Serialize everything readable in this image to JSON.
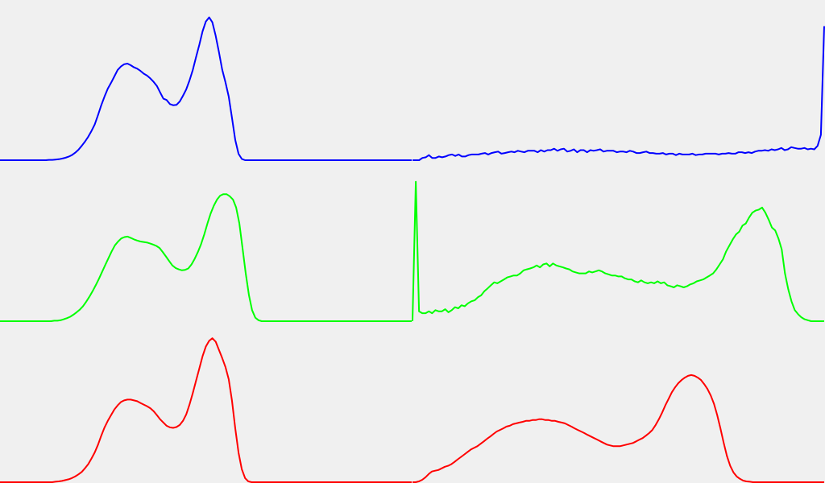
{
  "background": "#f0f0f0",
  "chart_data": [
    {
      "type": "line",
      "xlim": [
        0,
        255
      ],
      "series": [
        {
          "color": "#0000ff",
          "values": [
            0,
            0,
            0,
            0,
            0,
            0,
            0,
            0,
            0,
            0,
            0,
            0,
            0,
            0,
            0,
            0.2,
            0.2,
            0.4,
            0.6,
            1,
            1.5,
            2.2,
            3.2,
            4.7,
            6.5,
            9,
            11.6,
            14.7,
            18.4,
            22.4,
            28.4,
            34.5,
            40,
            44.9,
            48.6,
            52.5,
            56.6,
            58.8,
            60.2,
            60.6,
            59.6,
            58.3,
            57.4,
            56,
            54.3,
            53.1,
            51.3,
            49.2,
            46.6,
            42.6,
            38.6,
            37.8,
            35.2,
            34.5,
            34.7,
            36.8,
            40.4,
            44.5,
            50,
            56.6,
            64.6,
            72.4,
            80.8,
            87,
            89.6,
            86.5,
            78.1,
            68,
            56.8,
            49,
            39.9,
            26.7,
            12.7,
            4,
            0.8,
            0,
            0,
            0,
            0,
            0,
            0,
            0,
            0,
            0,
            0,
            0,
            0,
            0,
            0,
            0,
            0,
            0,
            0,
            0,
            0,
            0,
            0,
            0,
            0,
            0,
            0,
            0,
            0,
            0,
            0,
            0,
            0,
            0,
            0,
            0,
            0,
            0,
            0,
            0,
            0,
            0,
            0,
            0,
            0,
            0,
            0,
            0,
            0,
            0,
            0,
            0,
            0
          ]
        },
        {
          "color": "#0000ff",
          "values": [
            0,
            0,
            0,
            1.4,
            1.8,
            3.2,
            1.4,
            1.4,
            2.3,
            1.8,
            2.3,
            3.2,
            3.6,
            2.7,
            3.6,
            2.3,
            2.3,
            3.2,
            3.6,
            3.6,
            3.6,
            4.1,
            4.5,
            3.6,
            4.5,
            5,
            5.4,
            4.1,
            4.5,
            5,
            5.4,
            5,
            5.9,
            5.4,
            5,
            5.9,
            5.9,
            5.9,
            5,
            6.3,
            5.4,
            6.3,
            6.3,
            7.2,
            5.9,
            6.8,
            7.2,
            5.4,
            5.9,
            6.8,
            5,
            6.3,
            6.3,
            5,
            6.3,
            5.9,
            6.3,
            6.8,
            5.4,
            5.9,
            5.9,
            5.9,
            5,
            5.4,
            5.4,
            5,
            5.9,
            5.4,
            4.5,
            4.5,
            5,
            5.4,
            4.5,
            4.5,
            4.1,
            4.1,
            4.5,
            3.6,
            4.1,
            4.1,
            3.2,
            4.1,
            3.6,
            3.6,
            3.6,
            4.1,
            3.2,
            3.6,
            3.6,
            4.1,
            4.1,
            4.1,
            4.1,
            3.6,
            4.1,
            4.1,
            4.5,
            4.1,
            4.1,
            5,
            5,
            4.5,
            5,
            4.5,
            5.4,
            5.9,
            5.9,
            6.3,
            5.9,
            6.8,
            6.3,
            6.8,
            7.7,
            6.3,
            6.8,
            8.2,
            7.7,
            7.2,
            7.2,
            7.7,
            6.8,
            7.2,
            6.8,
            9,
            15.9,
            84.1
          ]
        },
        {
          "color": "#00ff00",
          "values": [
            0,
            0,
            0,
            0,
            0,
            0,
            0,
            0,
            0,
            0,
            0,
            0,
            0,
            0,
            0,
            0,
            0,
            0.3,
            0.3,
            0.6,
            1.2,
            1.9,
            2.8,
            4.1,
            5.6,
            7.2,
            9.4,
            12.2,
            15.3,
            18.8,
            22.5,
            26.6,
            31,
            35.3,
            39.6,
            43.8,
            47.6,
            50,
            51.9,
            52.8,
            53.1,
            52.2,
            51.3,
            50.6,
            50,
            49.7,
            49.4,
            48.8,
            48.1,
            47.2,
            45.9,
            43.4,
            40.6,
            37.8,
            35,
            33.4,
            32.5,
            31.9,
            32.2,
            33.1,
            35.6,
            39.1,
            43.4,
            48.4,
            54.4,
            61.3,
            67.5,
            72.5,
            76.3,
            78.8,
            79.7,
            79.7,
            78.4,
            76.3,
            71.3,
            61.3,
            45.6,
            30,
            16.3,
            6.9,
            2.2,
            0.6,
            0,
            0,
            0,
            0,
            0,
            0,
            0,
            0,
            0,
            0,
            0,
            0,
            0,
            0,
            0,
            0,
            0,
            0,
            0,
            0,
            0,
            0,
            0,
            0,
            0,
            0,
            0,
            0,
            0,
            0,
            0,
            0,
            0,
            0,
            0,
            0,
            0,
            0,
            0,
            0,
            0,
            0,
            0,
            0,
            0,
            0,
            0,
            0
          ]
        },
        {
          "color": "#00ff00",
          "values": [
            0,
            87.5,
            6.2,
            5,
            5,
            6.2,
            5,
            6.9,
            6.2,
            6.2,
            7.5,
            5.6,
            6.9,
            8.8,
            8.1,
            10,
            9.4,
            11.2,
            12.5,
            13.1,
            15,
            16.2,
            18.8,
            20.6,
            22.5,
            24.4,
            23.8,
            25,
            26.2,
            27.5,
            28.1,
            28.7,
            28.7,
            30,
            31.9,
            32.5,
            33.1,
            33.8,
            35,
            33.8,
            35.6,
            36.2,
            34.4,
            36.2,
            35,
            34.4,
            33.8,
            33.1,
            32.5,
            31.2,
            30.6,
            30,
            30,
            30,
            31.2,
            30.6,
            31.2,
            31.9,
            31.2,
            30,
            29.4,
            28.7,
            28.7,
            28.1,
            28.1,
            26.9,
            26.2,
            26.2,
            25,
            24.4,
            25.6,
            24.4,
            23.8,
            24.4,
            23.8,
            25,
            23.8,
            24.4,
            22.5,
            21.9,
            21.2,
            22.5,
            21.9,
            21.2,
            21.9,
            23.1,
            23.8,
            25,
            25.6,
            26.2,
            27.5,
            28.7,
            30,
            32.5,
            35.6,
            38.8,
            43.8,
            47.5,
            51.2,
            54.4,
            56.2,
            60,
            61.3,
            65,
            68.1,
            69.4,
            70,
            71.3,
            68.1,
            63.7,
            58.8,
            56.9,
            51.9,
            45,
            30,
            20,
            12.5,
            6.9,
            4.4,
            2.5,
            1.2,
            0.6,
            0,
            0,
            0,
            0,
            0
          ]
        },
        {
          "color": "#ff0000",
          "values": [
            0,
            0,
            0,
            0,
            0,
            0,
            0,
            0,
            0,
            0,
            0,
            0,
            0,
            0,
            0,
            0,
            0,
            0.3,
            0.5,
            0.8,
            1.3,
            1.8,
            2.6,
            3.6,
            4.9,
            6.4,
            8.7,
            11.3,
            14.9,
            18.7,
            23.6,
            29.2,
            34.4,
            38.5,
            42.1,
            45.6,
            48.2,
            50.3,
            51.3,
            51.8,
            51.8,
            51.3,
            50.8,
            49.7,
            48.7,
            47.7,
            46.4,
            44.6,
            42.1,
            39.5,
            37.4,
            35.4,
            34.4,
            34.1,
            34.6,
            35.9,
            38.5,
            42.6,
            48.7,
            55.9,
            63.6,
            71.3,
            79,
            85.1,
            88.7,
            90.3,
            88.2,
            83.1,
            77.9,
            72.3,
            64.6,
            51.3,
            33.8,
            18.5,
            8.2,
            2.6,
            0.5,
            0,
            0,
            0,
            0,
            0,
            0,
            0,
            0,
            0,
            0,
            0,
            0,
            0,
            0,
            0,
            0,
            0,
            0,
            0,
            0,
            0,
            0,
            0,
            0,
            0,
            0,
            0,
            0,
            0,
            0,
            0,
            0,
            0,
            0,
            0,
            0,
            0,
            0,
            0,
            0,
            0,
            0,
            0,
            0,
            0,
            0,
            0,
            0,
            0,
            0
          ]
        },
        {
          "color": "#ff0000",
          "values": [
            0,
            0,
            0.5,
            1.5,
            3.1,
            5.1,
            6.7,
            7.2,
            7.7,
            8.7,
            9.7,
            10.3,
            11.3,
            12.8,
            14.4,
            15.9,
            17.4,
            19,
            20.5,
            21.5,
            22.6,
            24.1,
            25.6,
            27.2,
            28.7,
            30.3,
            31.8,
            32.8,
            33.8,
            34.9,
            35.4,
            36.4,
            36.9,
            37.4,
            37.9,
            38.5,
            38.5,
            39,
            39,
            39.5,
            39.5,
            39,
            39,
            38.5,
            38.5,
            37.9,
            37.4,
            36.9,
            35.9,
            34.9,
            33.8,
            32.8,
            31.8,
            30.8,
            29.7,
            28.7,
            27.7,
            26.7,
            25.6,
            24.6,
            23.6,
            23.1,
            22.6,
            22.6,
            22.6,
            23.1,
            23.6,
            24.1,
            24.6,
            25.6,
            26.7,
            27.7,
            29.2,
            30.8,
            32.8,
            35.9,
            39.5,
            43.6,
            48.2,
            52.3,
            56.4,
            59.5,
            62.1,
            64.1,
            65.6,
            66.7,
            67.2,
            66.7,
            65.6,
            64.1,
            61.5,
            58.5,
            54.4,
            49.2,
            42.1,
            33.8,
            24.6,
            16.4,
            10.3,
            6.2,
            3.6,
            2.1,
            1,
            0.5,
            0.3,
            0,
            0,
            0,
            0,
            0,
            0,
            0,
            0,
            0,
            0,
            0,
            0,
            0,
            0,
            0,
            0,
            0,
            0,
            0,
            0,
            0,
            0,
            0
          ]
        }
      ]
    }
  ]
}
